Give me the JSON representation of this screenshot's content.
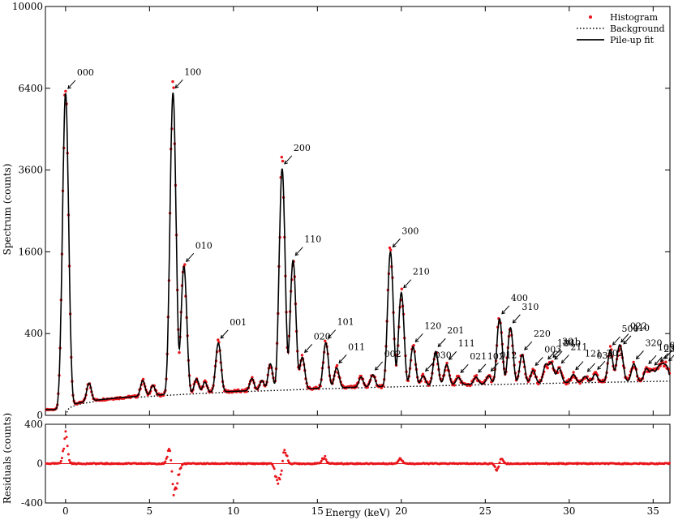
{
  "chart_data": [
    {
      "type": "line",
      "panel": "spectrum",
      "ylabel": "Spectrum (counts)",
      "x_range": [
        -1.2,
        36
      ],
      "y_scale": "sqrt",
      "y_range": [
        0,
        10000
      ],
      "y_ticks": [
        0,
        400,
        1600,
        3600,
        6400,
        10000
      ],
      "x_ticks": [
        0,
        5,
        10,
        15,
        20,
        25,
        30,
        35
      ],
      "legend_position": "top-right",
      "legend": [
        {
          "name": "Histogram",
          "style": "red dots"
        },
        {
          "name": "Background",
          "style": "dotted black line"
        },
        {
          "name": "Pile-up fit",
          "style": "solid black line"
        }
      ],
      "background": {
        "start": 0.0,
        "level_at_end": 70
      },
      "peaks": [
        {
          "label": "000",
          "x": 0.0,
          "y": 6200,
          "w": 0.13
        },
        {
          "label": "100",
          "x": 6.4,
          "y": 6200,
          "w": 0.13
        },
        {
          "label": "010",
          "x": 7.05,
          "y": 1300,
          "w": 0.13
        },
        {
          "label": "001",
          "x": 9.1,
          "y": 280,
          "w": 0.13
        },
        {
          "label": "200",
          "x": 12.9,
          "y": 3600,
          "w": 0.13
        },
        {
          "label": "110",
          "x": 13.55,
          "y": 1400,
          "w": 0.13
        },
        {
          "label": "020",
          "x": 14.1,
          "y": 160,
          "w": 0.13
        },
        {
          "label": "101",
          "x": 15.5,
          "y": 270,
          "w": 0.13
        },
        {
          "label": "011",
          "x": 16.15,
          "y": 90,
          "w": 0.13
        },
        {
          "label": "002",
          "x": 18.3,
          "y": 50,
          "w": 0.13
        },
        {
          "label": "300",
          "x": 19.35,
          "y": 1550,
          "w": 0.13
        },
        {
          "label": "210",
          "x": 20.0,
          "y": 850,
          "w": 0.13
        },
        {
          "label": "120",
          "x": 20.7,
          "y": 230,
          "w": 0.13
        },
        {
          "label": "030",
          "x": 21.3,
          "y": 40,
          "w": 0.13
        },
        {
          "label": "201",
          "x": 22.05,
          "y": 190,
          "w": 0.13
        },
        {
          "label": "111",
          "x": 22.7,
          "y": 100,
          "w": 0.13
        },
        {
          "label": "021",
          "x": 23.4,
          "y": 30,
          "w": 0.13
        },
        {
          "label": "102",
          "x": 24.45,
          "y": 30,
          "w": 0.13
        },
        {
          "label": "012",
          "x": 25.2,
          "y": 35,
          "w": 0.13
        },
        {
          "label": "400",
          "x": 25.85,
          "y": 500,
          "w": 0.13
        },
        {
          "label": "310",
          "x": 26.5,
          "y": 400,
          "w": 0.13
        },
        {
          "label": "220",
          "x": 27.2,
          "y": 160,
          "w": 0.13
        },
        {
          "label": "003",
          "x": 27.85,
          "y": 60,
          "w": 0.13
        },
        {
          "label": "130",
          "x": 28.6,
          "y": 90,
          "w": 0.13
        },
        {
          "label": "301",
          "x": 28.9,
          "y": 70,
          "w": 0.13
        },
        {
          "label": "040",
          "x": 29.0,
          "y": 40,
          "w": 0.13
        },
        {
          "label": "211",
          "x": 29.4,
          "y": 70,
          "w": 0.13
        },
        {
          "label": "121",
          "x": 30.25,
          "y": 35,
          "w": 0.13
        },
        {
          "label": "031",
          "x": 30.95,
          "y": 25,
          "w": 0.13
        },
        {
          "label": "202",
          "x": 31.55,
          "y": 35,
          "w": 0.13
        },
        {
          "label": "500",
          "x": 32.45,
          "y": 190,
          "w": 0.13
        },
        {
          "label": "022",
          "x": 32.95,
          "y": 150,
          "w": 0.13
        },
        {
          "label": "410",
          "x": 33.1,
          "y": 120,
          "w": 0.13
        },
        {
          "label": "320",
          "x": 33.85,
          "y": 90,
          "w": 0.13
        },
        {
          "label": "103",
          "x": 34.6,
          "y": 60,
          "w": 0.13
        },
        {
          "label": "230",
          "x": 34.95,
          "y": 50,
          "w": 0.13
        },
        {
          "label": "013",
          "x": 35.3,
          "y": 60,
          "w": 0.13
        },
        {
          "label": "401",
          "x": 35.55,
          "y": 70,
          "w": 0.13
        },
        {
          "label": "140",
          "x": 35.8,
          "y": 65,
          "w": 0.13
        }
      ],
      "small_peaks": [
        {
          "x": 1.4,
          "y": 50,
          "w": 0.12
        },
        {
          "x": 4.6,
          "y": 50,
          "w": 0.12
        },
        {
          "x": 5.2,
          "y": 30,
          "w": 0.12
        },
        {
          "x": 7.8,
          "y": 50,
          "w": 0.12
        },
        {
          "x": 8.3,
          "y": 35,
          "w": 0.12
        },
        {
          "x": 11.1,
          "y": 45,
          "w": 0.12
        },
        {
          "x": 11.7,
          "y": 35,
          "w": 0.12
        },
        {
          "x": 12.2,
          "y": 120,
          "w": 0.12
        },
        {
          "x": 17.6,
          "y": 40,
          "w": 0.12
        }
      ]
    },
    {
      "type": "scatter",
      "panel": "residuals",
      "ylabel": "Residuals (counts)",
      "xlabel": "Energy (keV)",
      "x_range": [
        -1.2,
        36
      ],
      "y_range": [
        -400,
        400
      ],
      "y_ticks": [
        -400,
        0,
        400
      ],
      "x_ticks": [
        0,
        5,
        10,
        15,
        20,
        25,
        30,
        35
      ],
      "spikes": [
        {
          "x": 0.0,
          "amp": 330
        },
        {
          "x": 6.2,
          "amp": 200
        },
        {
          "x": 6.45,
          "amp": -350
        },
        {
          "x": 6.7,
          "amp": -150
        },
        {
          "x": 12.6,
          "amp": -200
        },
        {
          "x": 12.8,
          "amp": -150
        },
        {
          "x": 13.05,
          "amp": 200
        },
        {
          "x": 15.4,
          "amp": 80
        },
        {
          "x": 19.95,
          "amp": 70
        },
        {
          "x": 25.75,
          "amp": -120
        },
        {
          "x": 25.9,
          "amp": 100
        }
      ]
    }
  ]
}
